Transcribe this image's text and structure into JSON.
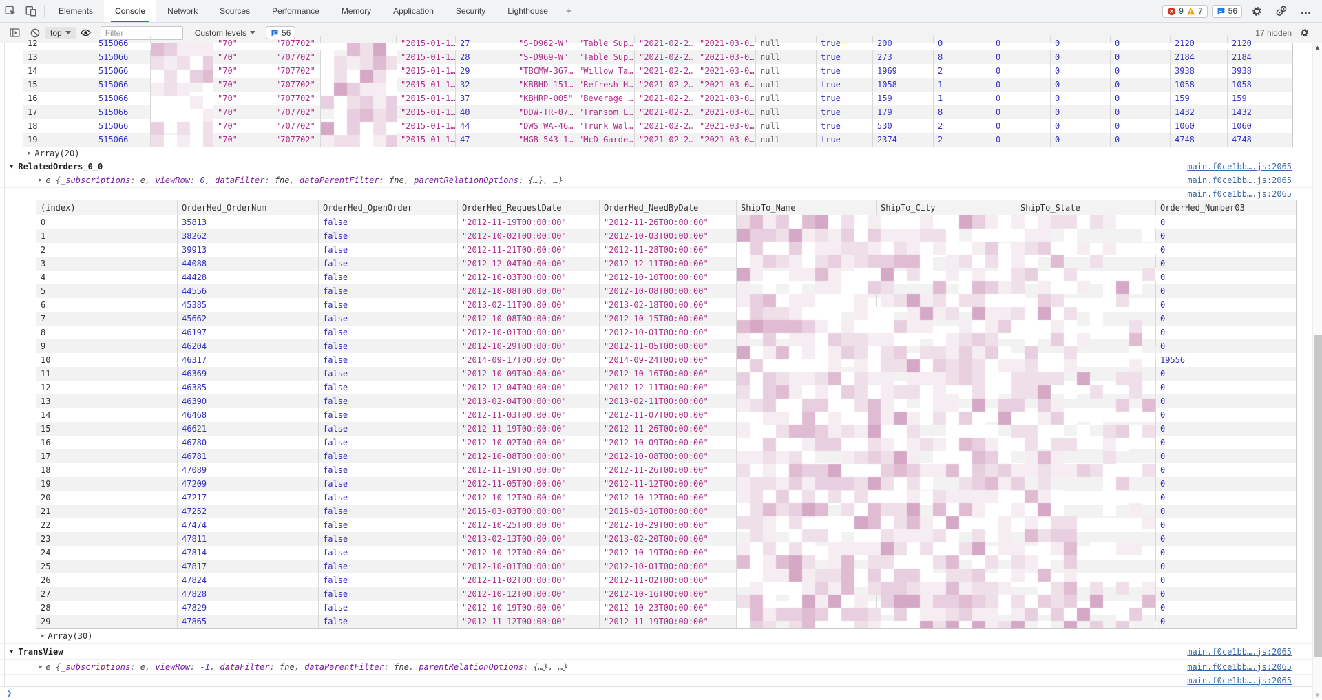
{
  "tabbar": {
    "tabs": [
      "Elements",
      "Console",
      "Network",
      "Sources",
      "Performance",
      "Memory",
      "Application",
      "Security",
      "Lighthouse"
    ],
    "active_tab": "Console",
    "more_tabs_label": "+",
    "error_count": "9",
    "warning_count": "7",
    "issues_count": "56",
    "more_menu_label": "…"
  },
  "toolbar": {
    "context_selector": "top",
    "filter_placeholder": "Filter",
    "custom_levels_label": "Custom levels",
    "message_count": "56",
    "hidden_count_label": "17 hidden"
  },
  "console": {
    "source_link": "main.f0ce1bb….js:2065",
    "prompt_chevron": "❯",
    "top_table": {
      "col_types": [
        "idx",
        "num",
        "redact",
        "str",
        "str",
        "redact",
        "str",
        "num",
        "str",
        "str",
        "str",
        "str",
        "nul",
        "kw",
        "num",
        "num",
        "num",
        "num",
        "num",
        "num",
        "num"
      ],
      "clipped_row": [
        "12",
        "515066",
        "",
        "\"70\"",
        "\"707702\"",
        "",
        "\"2015-01-1…",
        "27",
        "\"S-D962-W\"",
        "\"Table Sup…",
        "\"2021-02-2…",
        "\"2021-03-0…",
        "null",
        "true",
        "200",
        "0",
        "0",
        "0",
        "0",
        "2120",
        "2120"
      ],
      "rows": [
        [
          "13",
          "515066",
          "",
          "\"70\"",
          "\"707702\"",
          "",
          "\"2015-01-1…",
          "28",
          "\"S-D969-W\"",
          "\"Table Sup…",
          "\"2021-02-2…",
          "\"2021-03-0…",
          "null",
          "true",
          "273",
          "8",
          "0",
          "0",
          "0",
          "2184",
          "2184"
        ],
        [
          "14",
          "515066",
          "",
          "\"70\"",
          "\"707702\"",
          "",
          "\"2015-01-1…",
          "29",
          "\"TBCMW-367…",
          "\"Willow Ta…",
          "\"2021-02-2…",
          "\"2021-03-0…",
          "null",
          "true",
          "1969",
          "2",
          "0",
          "0",
          "0",
          "3938",
          "3938"
        ],
        [
          "15",
          "515066",
          "",
          "\"70\"",
          "\"707702\"",
          "",
          "\"2015-01-1…",
          "32",
          "\"KBBHD-151…",
          "\"Refresh H…",
          "\"2021-02-2…",
          "\"2021-03-0…",
          "null",
          "true",
          "1058",
          "1",
          "0",
          "0",
          "0",
          "1058",
          "1058"
        ],
        [
          "16",
          "515066",
          "",
          "\"70\"",
          "\"707702\"",
          "",
          "\"2015-01-1…",
          "37",
          "\"KBHRP-005\"",
          "\"Beverage …",
          "\"2021-02-2…",
          "\"2021-03-0…",
          "null",
          "true",
          "159",
          "1",
          "0",
          "0",
          "0",
          "159",
          "159"
        ],
        [
          "17",
          "515066",
          "",
          "\"70\"",
          "\"707702\"",
          "",
          "\"2015-01-1…",
          "40",
          "\"DDW-TR-07…",
          "\"Transom L…",
          "\"2021-02-2…",
          "\"2021-03-0…",
          "null",
          "true",
          "179",
          "8",
          "0",
          "0",
          "0",
          "1432",
          "1432"
        ],
        [
          "18",
          "515066",
          "",
          "\"70\"",
          "\"707702\"",
          "",
          "\"2015-01-1…",
          "44",
          "\"DWSTWA-46…",
          "\"Trunk Wal…",
          "\"2021-02-2…",
          "\"2021-03-0…",
          "null",
          "true",
          "530",
          "2",
          "0",
          "0",
          "0",
          "1060",
          "1060"
        ],
        [
          "19",
          "515066",
          "",
          "\"70\"",
          "\"707702\"",
          "",
          "\"2015-01-1…",
          "47",
          "\"MGB-543-1…",
          "\"McD Garde…",
          "\"2021-02-2…",
          "\"2021-03-0…",
          "null",
          "true",
          "2374",
          "2",
          "0",
          "0",
          "0",
          "4748",
          "4748"
        ]
      ]
    },
    "array20_label": "Array(20)",
    "related_orders": {
      "group_label": "RelatedOrders_0_0",
      "preview_tokens": [
        [
          "cn",
          "e "
        ],
        [
          "pu",
          "{"
        ],
        [
          "pn",
          "_subscriptions"
        ],
        [
          "pu",
          ": "
        ],
        [
          "fv",
          "e"
        ],
        [
          "pu",
          ", "
        ],
        [
          "pn",
          "viewRow"
        ],
        [
          "pu",
          ": "
        ],
        [
          "nv",
          "0"
        ],
        [
          "pu",
          ", "
        ],
        [
          "pn",
          "dataFilter"
        ],
        [
          "pu",
          ": "
        ],
        [
          "fv",
          "fne"
        ],
        [
          "pu",
          ", "
        ],
        [
          "pn",
          "dataParentFilter"
        ],
        [
          "pu",
          ": "
        ],
        [
          "fv",
          "fne"
        ],
        [
          "pu",
          ", "
        ],
        [
          "pn",
          "parentRelationOptions"
        ],
        [
          "pu",
          ": "
        ],
        [
          "ov",
          "{…}"
        ],
        [
          "pu",
          ", "
        ],
        [
          "ov",
          "…"
        ],
        [
          "pu",
          "}"
        ]
      ],
      "table": {
        "headers": [
          "(index)",
          "OrderHed_OrderNum",
          "OrderHed_OpenOrder",
          "OrderHed_RequestDate",
          "OrderHed_NeedByDate",
          "ShipTo_Name",
          "ShipTo_City",
          "ShipTo_State",
          "OrderHed_Number03"
        ],
        "col_types": [
          "idx",
          "num",
          "kw",
          "str",
          "str",
          "redact",
          "redact",
          "redact",
          "num"
        ],
        "rows": [
          [
            "0",
            "35813",
            "false",
            "\"2012-11-19T00:00:00\"",
            "\"2012-11-26T00:00:00\"",
            "",
            "",
            "",
            "0"
          ],
          [
            "1",
            "38262",
            "false",
            "\"2012-10-02T00:00:00\"",
            "\"2012-10-03T00:00:00\"",
            "",
            "",
            "",
            "0"
          ],
          [
            "2",
            "39913",
            "false",
            "\"2012-11-21T00:00:00\"",
            "\"2012-11-28T00:00:00\"",
            "",
            "",
            "",
            "0"
          ],
          [
            "3",
            "44088",
            "false",
            "\"2012-12-04T00:00:00\"",
            "\"2012-12-11T00:00:00\"",
            "",
            "",
            "",
            "0"
          ],
          [
            "4",
            "44428",
            "false",
            "\"2012-10-03T00:00:00\"",
            "\"2012-10-10T00:00:00\"",
            "",
            "",
            "",
            "0"
          ],
          [
            "5",
            "44556",
            "false",
            "\"2012-10-08T00:00:00\"",
            "\"2012-10-08T00:00:00\"",
            "",
            "",
            "",
            "0"
          ],
          [
            "6",
            "45385",
            "false",
            "\"2013-02-11T00:00:00\"",
            "\"2013-02-18T00:00:00\"",
            "",
            "",
            "",
            "0"
          ],
          [
            "7",
            "45662",
            "false",
            "\"2012-10-08T00:00:00\"",
            "\"2012-10-15T00:00:00\"",
            "",
            "",
            "",
            "0"
          ],
          [
            "8",
            "46197",
            "false",
            "\"2012-10-01T00:00:00\"",
            "\"2012-10-01T00:00:00\"",
            "",
            "",
            "",
            "0"
          ],
          [
            "9",
            "46204",
            "false",
            "\"2012-10-29T00:00:00\"",
            "\"2012-11-05T00:00:00\"",
            "",
            "",
            "",
            "0"
          ],
          [
            "10",
            "46317",
            "false",
            "\"2014-09-17T00:00:00\"",
            "\"2014-09-24T00:00:00\"",
            "",
            "",
            "",
            "19556"
          ],
          [
            "11",
            "46369",
            "false",
            "\"2012-10-09T00:00:00\"",
            "\"2012-10-16T00:00:00\"",
            "",
            "",
            "",
            "0"
          ],
          [
            "12",
            "46385",
            "false",
            "\"2012-12-04T00:00:00\"",
            "\"2012-12-11T00:00:00\"",
            "",
            "",
            "",
            "0"
          ],
          [
            "13",
            "46390",
            "false",
            "\"2013-02-04T00:00:00\"",
            "\"2013-02-11T00:00:00\"",
            "",
            "",
            "",
            "0"
          ],
          [
            "14",
            "46468",
            "false",
            "\"2012-11-03T00:00:00\"",
            "\"2012-11-07T00:00:00\"",
            "",
            "",
            "",
            "0"
          ],
          [
            "15",
            "46621",
            "false",
            "\"2012-11-19T00:00:00\"",
            "\"2012-11-26T00:00:00\"",
            "",
            "",
            "",
            "0"
          ],
          [
            "16",
            "46780",
            "false",
            "\"2012-10-02T00:00:00\"",
            "\"2012-10-09T00:00:00\"",
            "",
            "",
            "",
            "0"
          ],
          [
            "17",
            "46781",
            "false",
            "\"2012-10-08T00:00:00\"",
            "\"2012-10-08T00:00:00\"",
            "",
            "",
            "",
            "0"
          ],
          [
            "18",
            "47089",
            "false",
            "\"2012-11-19T00:00:00\"",
            "\"2012-11-26T00:00:00\"",
            "",
            "",
            "",
            "0"
          ],
          [
            "19",
            "47209",
            "false",
            "\"2012-11-05T00:00:00\"",
            "\"2012-11-12T00:00:00\"",
            "",
            "",
            "",
            "0"
          ],
          [
            "20",
            "47217",
            "false",
            "\"2012-10-12T00:00:00\"",
            "\"2012-10-12T00:00:00\"",
            "",
            "",
            "",
            "0"
          ],
          [
            "21",
            "47252",
            "false",
            "\"2015-03-03T00:00:00\"",
            "\"2015-03-10T00:00:00\"",
            "",
            "",
            "",
            "0"
          ],
          [
            "22",
            "47474",
            "false",
            "\"2012-10-25T00:00:00\"",
            "\"2012-10-29T00:00:00\"",
            "",
            "",
            "",
            "0"
          ],
          [
            "23",
            "47811",
            "false",
            "\"2013-02-13T00:00:00\"",
            "\"2013-02-20T00:00:00\"",
            "",
            "",
            "",
            "0"
          ],
          [
            "24",
            "47814",
            "false",
            "\"2012-10-12T00:00:00\"",
            "\"2012-10-19T00:00:00\"",
            "",
            "",
            "",
            "0"
          ],
          [
            "25",
            "47817",
            "false",
            "\"2012-10-01T00:00:00\"",
            "\"2012-10-01T00:00:00\"",
            "",
            "",
            "",
            "0"
          ],
          [
            "26",
            "47824",
            "false",
            "\"2012-11-02T00:00:00\"",
            "\"2012-11-02T00:00:00\"",
            "",
            "",
            "",
            "0"
          ],
          [
            "27",
            "47828",
            "false",
            "\"2012-10-12T00:00:00\"",
            "\"2012-10-16T00:00:00\"",
            "",
            "",
            "",
            "0"
          ],
          [
            "28",
            "47829",
            "false",
            "\"2012-10-19T00:00:00\"",
            "\"2012-10-23T00:00:00\"",
            "",
            "",
            "",
            "0"
          ],
          [
            "29",
            "47865",
            "false",
            "\"2012-11-12T00:00:00\"",
            "\"2012-11-19T00:00:00\"",
            "",
            "",
            "",
            "0"
          ]
        ]
      },
      "array_label": "Array(30)"
    },
    "trans_view": {
      "group_label": "TransView",
      "preview_tokens": [
        [
          "cn",
          "e "
        ],
        [
          "pu",
          "{"
        ],
        [
          "pn",
          "_subscriptions"
        ],
        [
          "pu",
          ": "
        ],
        [
          "fv",
          "e"
        ],
        [
          "pu",
          ", "
        ],
        [
          "pn",
          "viewRow"
        ],
        [
          "pu",
          ": "
        ],
        [
          "nv",
          "-1"
        ],
        [
          "pu",
          ", "
        ],
        [
          "pn",
          "dataFilter"
        ],
        [
          "pu",
          ": "
        ],
        [
          "fv",
          "fne"
        ],
        [
          "pu",
          ", "
        ],
        [
          "pn",
          "dataParentFilter"
        ],
        [
          "pu",
          ": "
        ],
        [
          "fv",
          "fne"
        ],
        [
          "pu",
          ", "
        ],
        [
          "pn",
          "parentRelationOptions"
        ],
        [
          "pu",
          ": "
        ],
        [
          "ov",
          "{…}"
        ],
        [
          "pu",
          ", "
        ],
        [
          "ov",
          "…"
        ],
        [
          "pu",
          "}"
        ]
      ]
    }
  }
}
